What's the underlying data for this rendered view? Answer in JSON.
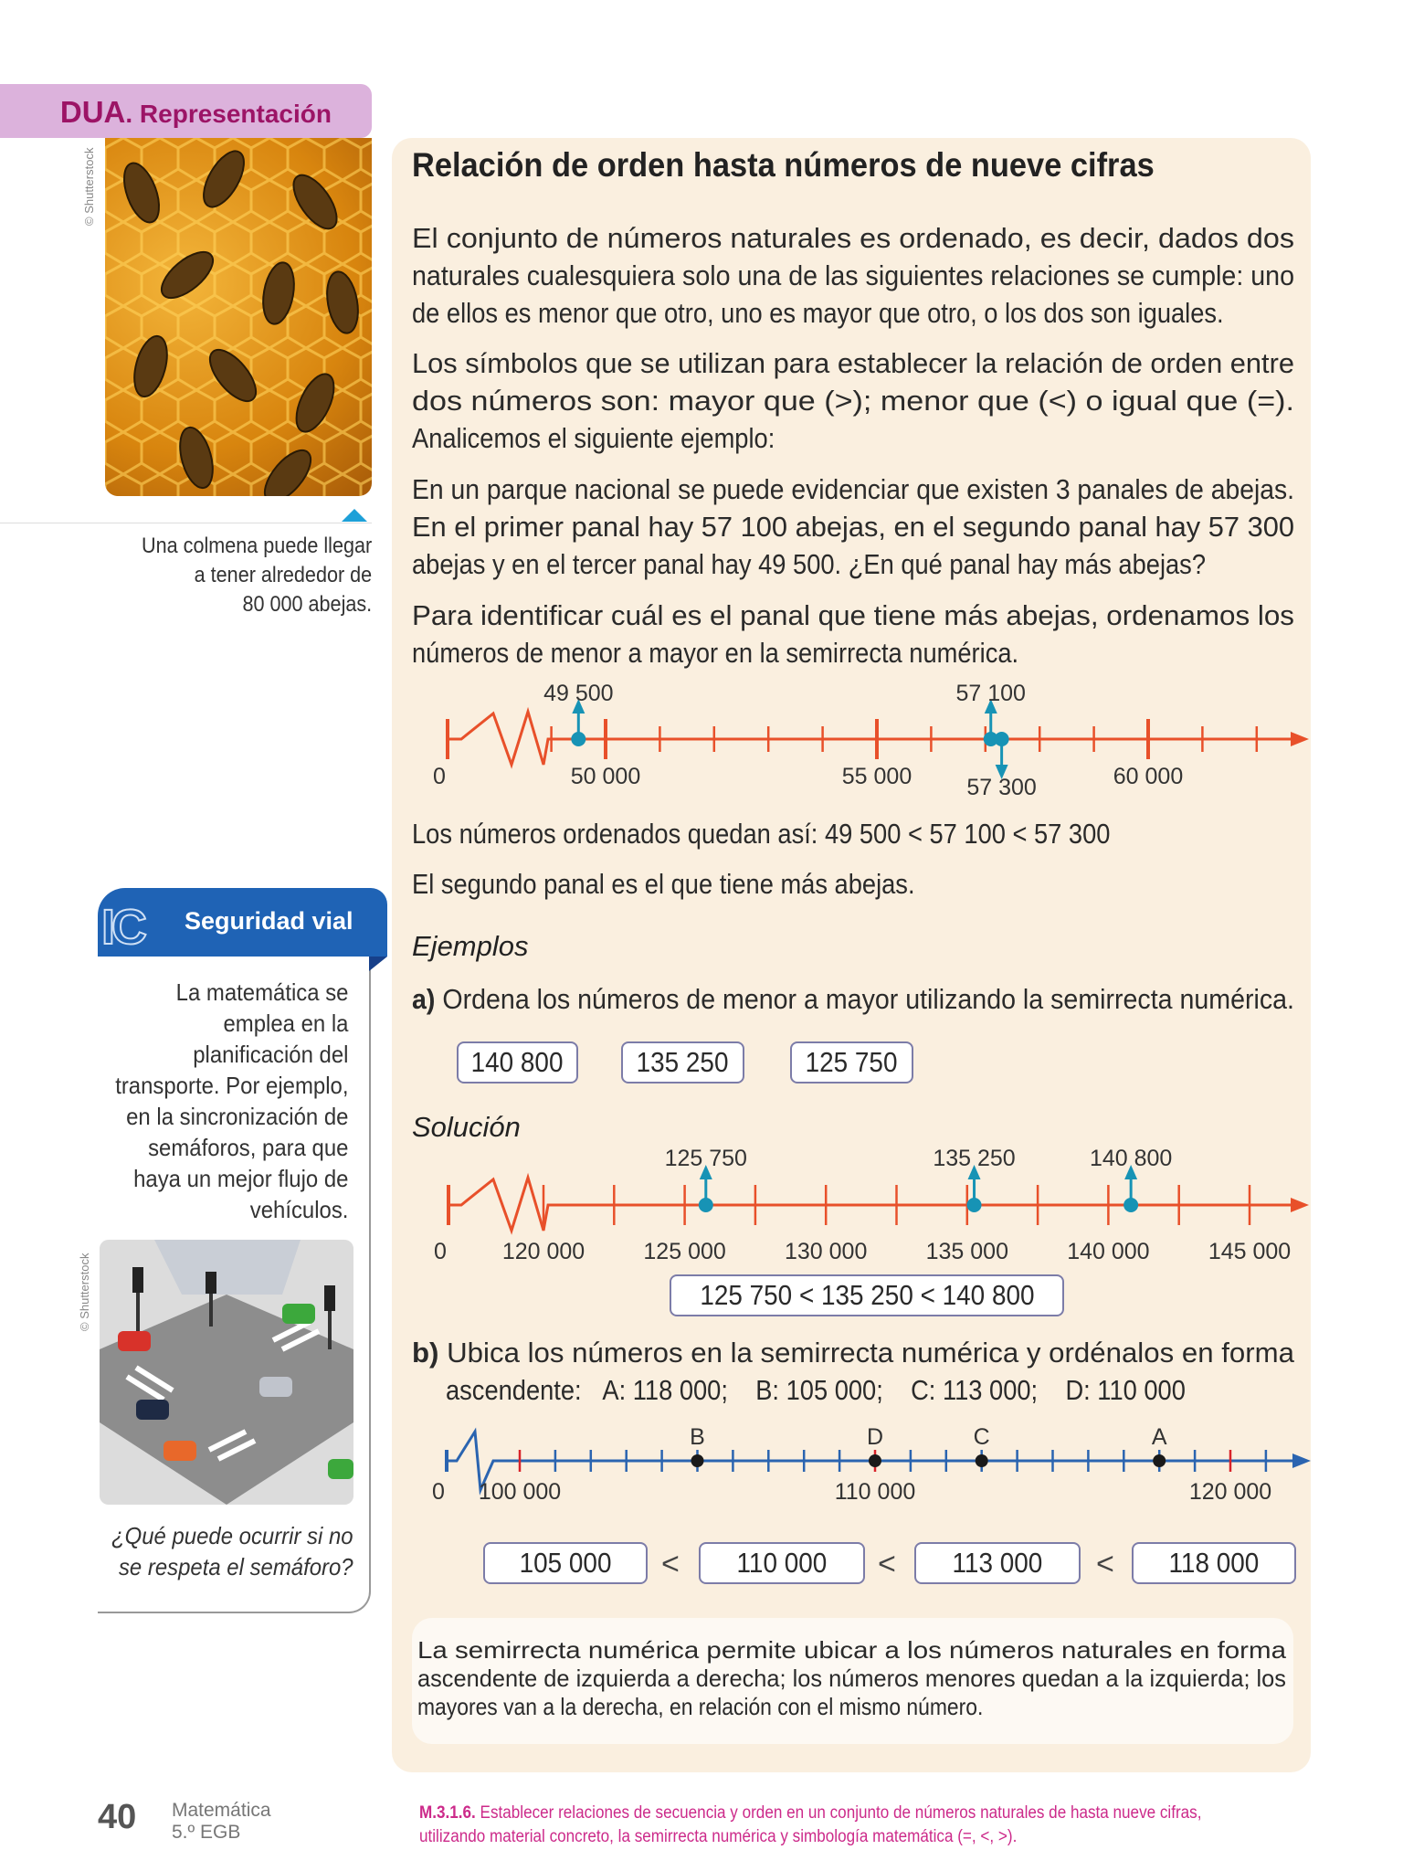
{
  "dua": {
    "bold": "DUA",
    "rest": ". Representación"
  },
  "photo_credit": "© Shutterstock",
  "bee_caption": [
    "Una colmena puede llegar",
    "a tener alrededor de",
    "80 000 abejas."
  ],
  "main": {
    "title": "Relación de orden hasta números de nueve cifras",
    "paragraphs": [
      [
        "El conjunto de números naturales es ordenado, es decir, dados dos",
        "naturales cualesquiera solo una de las siguientes relaciones se cumple: uno",
        "de ellos es menor que otro, uno es mayor que otro, o los dos son iguales."
      ],
      [
        "Los símbolos que se utilizan para establecer la relación de orden entre",
        "dos números son: mayor que (>); menor que (<) o igual que (=).",
        "Analicemos el siguiente ejemplo:"
      ],
      [
        "En un parque nacional se puede evidenciar que existen 3 panales de abejas.",
        "En el primer panal hay 57 100 abejas, en el segundo panal hay 57 300",
        "abejas y en el tercer panal hay 49 500. ¿En qué panal hay más abejas?"
      ],
      [
        "Para identificar cuál es el panal que tiene más abejas, ordenamos los",
        "números de menor a mayor en la semirrecta numérica."
      ]
    ],
    "ordered": "Los números ordenados quedan así: 49 500 < 57 100 < 57 300",
    "conclusion": "El segundo panal es el que tiene más abejas.",
    "examples_heading": "Ejemplos",
    "a_label": "a)",
    "a_text": "Ordena los números de menor a mayor utilizando la semirrecta numérica.",
    "a_numbers": [
      "140 800",
      "135 250",
      "125 750"
    ],
    "solution_heading": "Solución",
    "a_result": "125 750 < 135 250 < 140 800",
    "b_label": "b)",
    "b_line1": "Ubica los números en la semirrecta numérica y ordénalos en forma",
    "b_line2": [
      "ascendente:",
      "A: 118 000;",
      "B: 105 000;",
      "C: 113 000;",
      "D: 110 000"
    ],
    "b_answers": [
      "105 000",
      "110 000",
      "113 000",
      "118 000"
    ],
    "less_than": "<",
    "note": [
      "La semirrecta numérica permite ubicar a los números naturales en forma",
      "ascendente de izquierda a derecha; los números menores quedan a la izquierda; los",
      "mayores van a la derecha, en relación con el mismo número."
    ]
  },
  "number_lines": [
    {
      "color": "#e8502a",
      "point_color": "#1793b5",
      "zero_label": "0",
      "tick_labels": [
        {
          "value": 50000,
          "label": "50 000"
        },
        {
          "value": 55000,
          "label": "55 000"
        },
        {
          "value": 60000,
          "label": "60 000"
        }
      ],
      "tick_step": 1000,
      "tick_range": [
        49000,
        62000
      ],
      "major_ticks": [
        50000,
        55000,
        60000
      ],
      "points": [
        {
          "value": 49500,
          "label": "49 500",
          "arrow": "up"
        },
        {
          "value": 57100,
          "label": "57 100",
          "arrow": "up"
        },
        {
          "value": 57300,
          "label": "57 300",
          "arrow": "down"
        }
      ]
    },
    {
      "color": "#e8502a",
      "point_color": "#1793b5",
      "zero_label": "0",
      "tick_labels": [
        {
          "value": 120000,
          "label": "120 000"
        },
        {
          "value": 125000,
          "label": "125 000"
        },
        {
          "value": 130000,
          "label": "130 000"
        },
        {
          "value": 135000,
          "label": "135 000"
        },
        {
          "value": 140000,
          "label": "140 000"
        },
        {
          "value": 145000,
          "label": "145 000"
        }
      ],
      "tick_step": 2500,
      "tick_range": [
        120000,
        145000
      ],
      "major_ticks": [],
      "points": [
        {
          "value": 125750,
          "label": "125 750",
          "arrow": "up"
        },
        {
          "value": 135250,
          "label": "135 250",
          "arrow": "up"
        },
        {
          "value": 140800,
          "label": "140 800",
          "arrow": "up"
        }
      ]
    },
    {
      "color": "#2a64b0",
      "point_color": "#1a1a1a",
      "highlight_tick_color": "#d8232a",
      "zero_label": "0",
      "tick_labels": [
        {
          "value": 100000,
          "label": "100 000"
        },
        {
          "value": 110000,
          "label": "110 000"
        },
        {
          "value": 120000,
          "label": "120 000"
        }
      ],
      "tick_step": 1000,
      "tick_range": [
        100000,
        121000
      ],
      "major_ticks": [
        100000,
        110000,
        120000
      ],
      "points": [
        {
          "value": 105000,
          "label": "B",
          "arrow": "none"
        },
        {
          "value": 110000,
          "label": "D",
          "arrow": "none"
        },
        {
          "value": 113000,
          "label": "C",
          "arrow": "none"
        },
        {
          "value": 118000,
          "label": "A",
          "arrow": "none"
        }
      ]
    }
  ],
  "seguridad": {
    "icon_letters": "IC",
    "title": "Seguridad vial",
    "text": [
      "La matemática se",
      "emplea en la",
      "planificación del",
      "transporte. Por ejemplo,",
      "en la sincronización de",
      "semáforos, para que",
      "haya un mejor flujo de",
      "vehículos."
    ],
    "question": [
      "¿Qué puede ocurrir si no",
      "se respeta el semáforo?"
    ]
  },
  "footer": {
    "page_number": "40",
    "subject": "Matemática",
    "grade": "5.º EGB",
    "standard_code": "M.3.1.6.",
    "standard_text": [
      " Establecer relaciones de secuencia y orden en un conjunto de números naturales de hasta nueve cifras,",
      "utilizando material concreto, la semirrecta numérica y simbología matemática (=, <, >)."
    ]
  }
}
